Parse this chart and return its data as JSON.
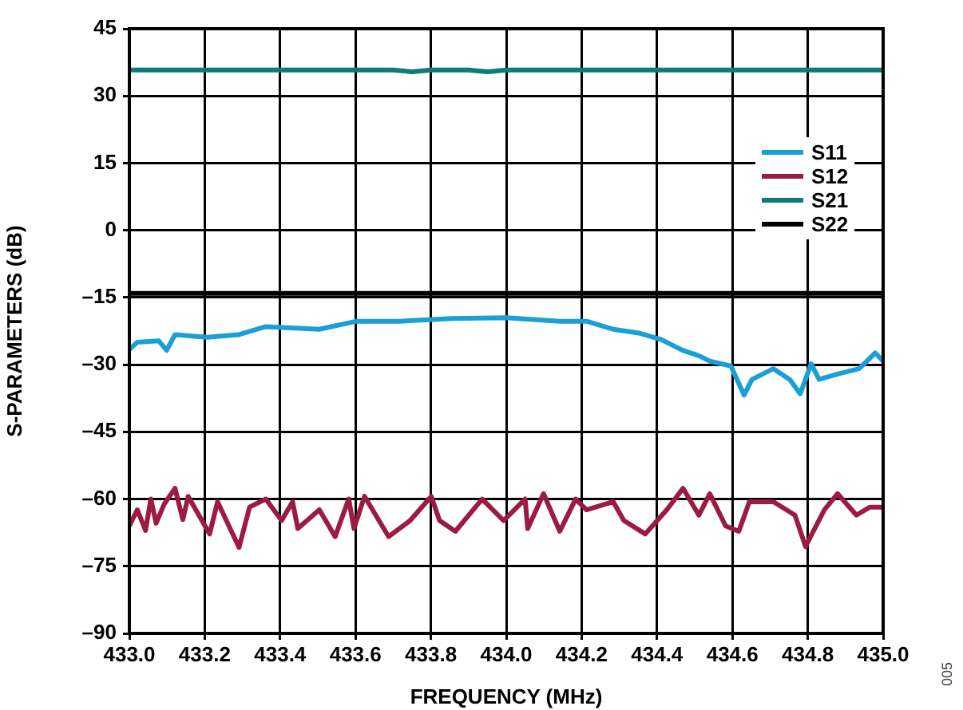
{
  "chart_data": {
    "type": "line",
    "xlabel": "FREQUENCY (MHz)",
    "ylabel": "S-PARAMETERS (dB)",
    "xlim": [
      433.0,
      435.0
    ],
    "xticks": [
      {
        "value": 433.0,
        "label": "433.0"
      },
      {
        "value": 433.2,
        "label": "433.2"
      },
      {
        "value": 433.4,
        "label": "433.4"
      },
      {
        "value": 433.6,
        "label": "433.6"
      },
      {
        "value": 433.8,
        "label": "433.8"
      },
      {
        "value": 434.0,
        "label": "434.0"
      },
      {
        "value": 434.2,
        "label": "434.2"
      },
      {
        "value": 434.4,
        "label": "434.4"
      },
      {
        "value": 434.6,
        "label": "434.6"
      },
      {
        "value": 434.8,
        "label": "434.8"
      },
      {
        "value": 435.0,
        "label": "435.0"
      }
    ],
    "ylim": [
      -90,
      45
    ],
    "yticks": [
      {
        "value": -90,
        "label": "–90"
      },
      {
        "value": -75,
        "label": "–75"
      },
      {
        "value": -60,
        "label": "–60"
      },
      {
        "value": -45,
        "label": "–45"
      },
      {
        "value": -30,
        "label": "–30"
      },
      {
        "value": -15,
        "label": "–15"
      },
      0,
      15,
      30,
      45
    ],
    "grid": true,
    "legend": "right",
    "marker": "none",
    "line_style": "solid",
    "annotations": [
      "005"
    ],
    "series": [
      {
        "name": "S11",
        "color": "#1a9fd6",
        "x": [
          433.0,
          433.021,
          433.078,
          433.099,
          433.121,
          433.206,
          433.291,
          433.362,
          433.504,
          433.603,
          433.716,
          433.858,
          434.0,
          434.142,
          434.213,
          434.284,
          434.355,
          434.411,
          434.468,
          434.511,
          434.54,
          434.596,
          434.631,
          434.652,
          434.709,
          434.752,
          434.78,
          434.809,
          434.83,
          434.879,
          434.936,
          434.979,
          435.0
        ],
        "values": [
          -26.6,
          -25.0,
          -24.7,
          -26.8,
          -23.3,
          -23.9,
          -23.3,
          -21.5,
          -22.1,
          -20.3,
          -20.3,
          -19.7,
          -19.5,
          -20.3,
          -20.3,
          -22.1,
          -23.0,
          -24.4,
          -26.8,
          -28.0,
          -29.2,
          -30.3,
          -36.8,
          -33.3,
          -30.9,
          -33.3,
          -36.5,
          -29.8,
          -33.3,
          -32.1,
          -30.9,
          -27.4,
          -29.2
        ]
      },
      {
        "name": "S12",
        "color": "#9b1b42",
        "x": [
          433.0,
          433.021,
          433.043,
          433.057,
          433.071,
          433.092,
          433.121,
          433.142,
          433.156,
          433.213,
          433.234,
          433.291,
          433.319,
          433.362,
          433.404,
          433.433,
          433.447,
          433.504,
          433.546,
          433.582,
          433.596,
          433.624,
          433.688,
          433.745,
          433.801,
          433.823,
          433.865,
          433.936,
          433.993,
          434.05,
          434.057,
          434.099,
          434.142,
          434.184,
          434.213,
          434.284,
          434.312,
          434.369,
          434.426,
          434.469,
          434.511,
          434.54,
          434.582,
          434.617,
          434.645,
          434.709,
          434.766,
          434.794,
          434.844,
          434.879,
          434.929,
          434.965,
          435.0
        ],
        "values": [
          -66,
          -62.4,
          -67,
          -60,
          -65.4,
          -61.2,
          -57.6,
          -64.6,
          -59.4,
          -67.8,
          -60.6,
          -70.8,
          -61.8,
          -60,
          -64.8,
          -60.6,
          -66.6,
          -62.4,
          -68.4,
          -60,
          -66.6,
          -59.4,
          -68.4,
          -64.8,
          -59.4,
          -64.8,
          -67.2,
          -60,
          -64.8,
          -60,
          -66.6,
          -58.8,
          -67.2,
          -60,
          -62.4,
          -60.6,
          -64.8,
          -67.8,
          -62.4,
          -57.6,
          -63.6,
          -58.8,
          -66,
          -67.2,
          -60.6,
          -60.6,
          -63.6,
          -70.6,
          -62.4,
          -58.8,
          -63.6,
          -61.8,
          -61.8
        ]
      },
      {
        "name": "S21",
        "color": "#107a7a",
        "x": [
          433.0,
          433.7,
          433.75,
          433.8,
          433.9,
          433.95,
          434.0,
          435.0
        ],
        "values": [
          35.8,
          35.8,
          35.4,
          35.8,
          35.8,
          35.4,
          35.8,
          35.8
        ]
      },
      {
        "name": "S22",
        "color": "#000000",
        "x": [
          433.0,
          433.5,
          434.0,
          434.5,
          435.0
        ],
        "values": [
          -14.1,
          -14.1,
          -14.1,
          -14.1,
          -14.1
        ]
      }
    ]
  }
}
